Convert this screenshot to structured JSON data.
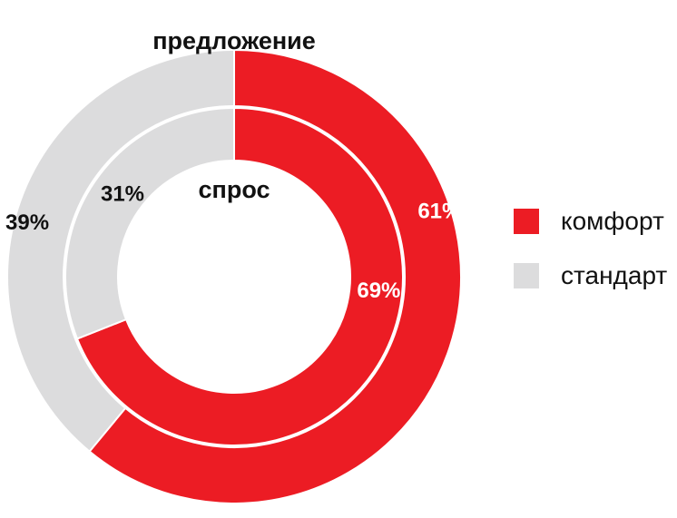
{
  "chart_data": {
    "type": "pie",
    "categories": [
      "комфорт",
      "стандарт"
    ],
    "series": [
      {
        "name": "предложение",
        "ring": "outer",
        "values": [
          61,
          39
        ],
        "labels": [
          "61%",
          "39%"
        ]
      },
      {
        "name": "спрос",
        "ring": "inner",
        "values": [
          69,
          31
        ],
        "labels": [
          "69%",
          "31%"
        ]
      }
    ],
    "colors": {
      "комфорт": "#ec1c24",
      "стандарт": "#dcdcdd"
    },
    "label_colors": {
      "комфорт": "#ffffff",
      "стандарт": "#111111"
    },
    "start_angle": "12 o'clock",
    "direction": "clockwise",
    "legend_placement": "right"
  }
}
